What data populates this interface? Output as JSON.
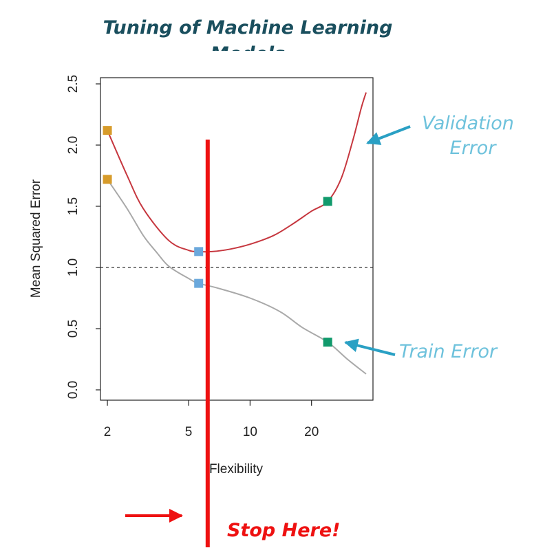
{
  "page_title": "Tuning of Machine Learning Models",
  "chart_data": {
    "type": "line",
    "xlabel": "Flexibility",
    "ylabel": "Mean Squared Error",
    "x_scale": "log",
    "xlim": [
      1.85,
      40
    ],
    "ylim": [
      0,
      2.5
    ],
    "x_ticks": [
      2,
      5,
      10,
      20
    ],
    "y_ticks": [
      "0.0",
      "0.5",
      "1.0",
      "1.5",
      "2.0",
      "2.5"
    ],
    "grid": false,
    "reference_line": {
      "y": 1.0,
      "style": "dashed"
    },
    "series": [
      {
        "key": "validation",
        "color": "#c6373f",
        "points": [
          [
            2,
            2.12
          ],
          [
            2.5,
            1.75
          ],
          [
            3,
            1.48
          ],
          [
            4,
            1.22
          ],
          [
            5,
            1.14
          ],
          [
            5.6,
            1.13
          ],
          [
            6.5,
            1.13
          ],
          [
            8,
            1.15
          ],
          [
            10,
            1.19
          ],
          [
            13,
            1.26
          ],
          [
            16,
            1.35
          ],
          [
            20,
            1.46
          ],
          [
            24,
            1.54
          ],
          [
            28,
            1.73
          ],
          [
            32,
            2.05
          ],
          [
            35,
            2.3
          ],
          [
            37,
            2.43
          ]
        ]
      },
      {
        "key": "train",
        "color": "#a9a9a9",
        "points": [
          [
            2,
            1.72
          ],
          [
            2.5,
            1.48
          ],
          [
            3,
            1.26
          ],
          [
            3.5,
            1.12
          ],
          [
            4,
            1.01
          ],
          [
            5,
            0.91
          ],
          [
            5.6,
            0.87
          ],
          [
            7,
            0.83
          ],
          [
            10,
            0.75
          ],
          [
            14,
            0.64
          ],
          [
            18,
            0.51
          ],
          [
            24,
            0.39
          ],
          [
            30,
            0.25
          ],
          [
            37,
            0.13
          ]
        ]
      }
    ],
    "markers": [
      {
        "x": 2,
        "y": 2.12,
        "color": "#d79b2a"
      },
      {
        "x": 2,
        "y": 1.72,
        "color": "#d79b2a"
      },
      {
        "x": 5.6,
        "y": 1.13,
        "color": "#6aa8dc"
      },
      {
        "x": 5.6,
        "y": 0.87,
        "color": "#6aa8dc"
      },
      {
        "x": 24,
        "y": 1.54,
        "color": "#119a6c"
      },
      {
        "x": 24,
        "y": 0.39,
        "color": "#119a6c"
      }
    ],
    "stop_line": {
      "x": 6.2,
      "color": "#ee1111"
    }
  },
  "annotations": {
    "validation_line1": "Validation",
    "validation_line2": "Error",
    "train": "Train Error",
    "stop": "Stop Here!",
    "arrow_color": "#2aa0c4"
  }
}
